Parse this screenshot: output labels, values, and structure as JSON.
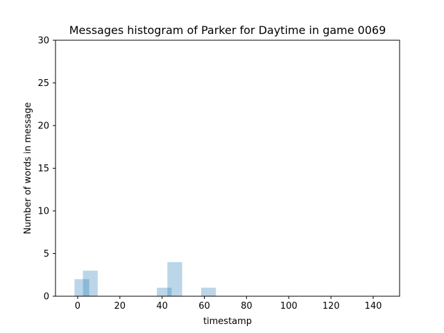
{
  "chart_data": {
    "type": "bar",
    "title": "Messages histogram of Parker for Daytime in game 0069",
    "xlabel": "timestamp",
    "ylabel": "Number of words in message",
    "xlim": [
      -10.5,
      152.5
    ],
    "ylim": [
      0,
      30
    ],
    "xticks": [
      0,
      20,
      40,
      60,
      80,
      100,
      120,
      140
    ],
    "yticks": [
      0,
      5,
      10,
      15,
      20,
      25,
      30
    ],
    "grid": false,
    "bar_color": "#1f77b4",
    "bar_opacity": 0.3,
    "bars": [
      {
        "x0": -1.5,
        "x1": 5.5,
        "value": 2
      },
      {
        "x0": 2.5,
        "x1": 9.5,
        "value": 3
      },
      {
        "x0": 37.5,
        "x1": 44.5,
        "value": 1
      },
      {
        "x0": 42.5,
        "x1": 49.5,
        "value": 4
      },
      {
        "x0": 58.5,
        "x1": 65.5,
        "value": 1
      }
    ]
  }
}
